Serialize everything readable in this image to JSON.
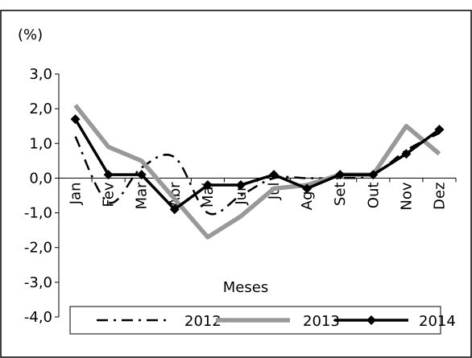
{
  "chart_data": {
    "type": "line",
    "title": "",
    "ylabel": "(%)",
    "xlabel": "Meses",
    "categories": [
      "Jan",
      "Fev",
      "Mar",
      "Abr",
      "Mai",
      "Jun",
      "Jul",
      "Ago",
      "Set",
      "Out",
      "Nov",
      "Dez"
    ],
    "ylim": [
      -4.0,
      3.0
    ],
    "yticks": [
      "3,0",
      "2,0",
      "1,0",
      "0,0",
      "-1,0",
      "-2,0",
      "-3,0",
      "-4,0"
    ],
    "legend_position": "bottom",
    "series": [
      {
        "name": "2012",
        "values": [
          1.2,
          -0.7,
          0.3,
          0.6,
          -1.0,
          -0.5,
          0.0,
          0.0,
          0.0,
          0.1,
          0.8,
          1.3
        ],
        "color": "#000000",
        "style": "dash-dot"
      },
      {
        "name": "2013",
        "values": [
          2.1,
          0.9,
          0.5,
          -0.6,
          -1.7,
          -1.1,
          -0.3,
          -0.2,
          0.1,
          0.1,
          1.5,
          0.7
        ],
        "color": "#999999",
        "style": "solid-thick"
      },
      {
        "name": "2014",
        "values": [
          1.7,
          0.1,
          0.1,
          -0.9,
          -0.2,
          -0.2,
          0.1,
          -0.3,
          0.1,
          0.1,
          0.7,
          1.4
        ],
        "color": "#000000",
        "style": "solid-diamond"
      }
    ]
  }
}
